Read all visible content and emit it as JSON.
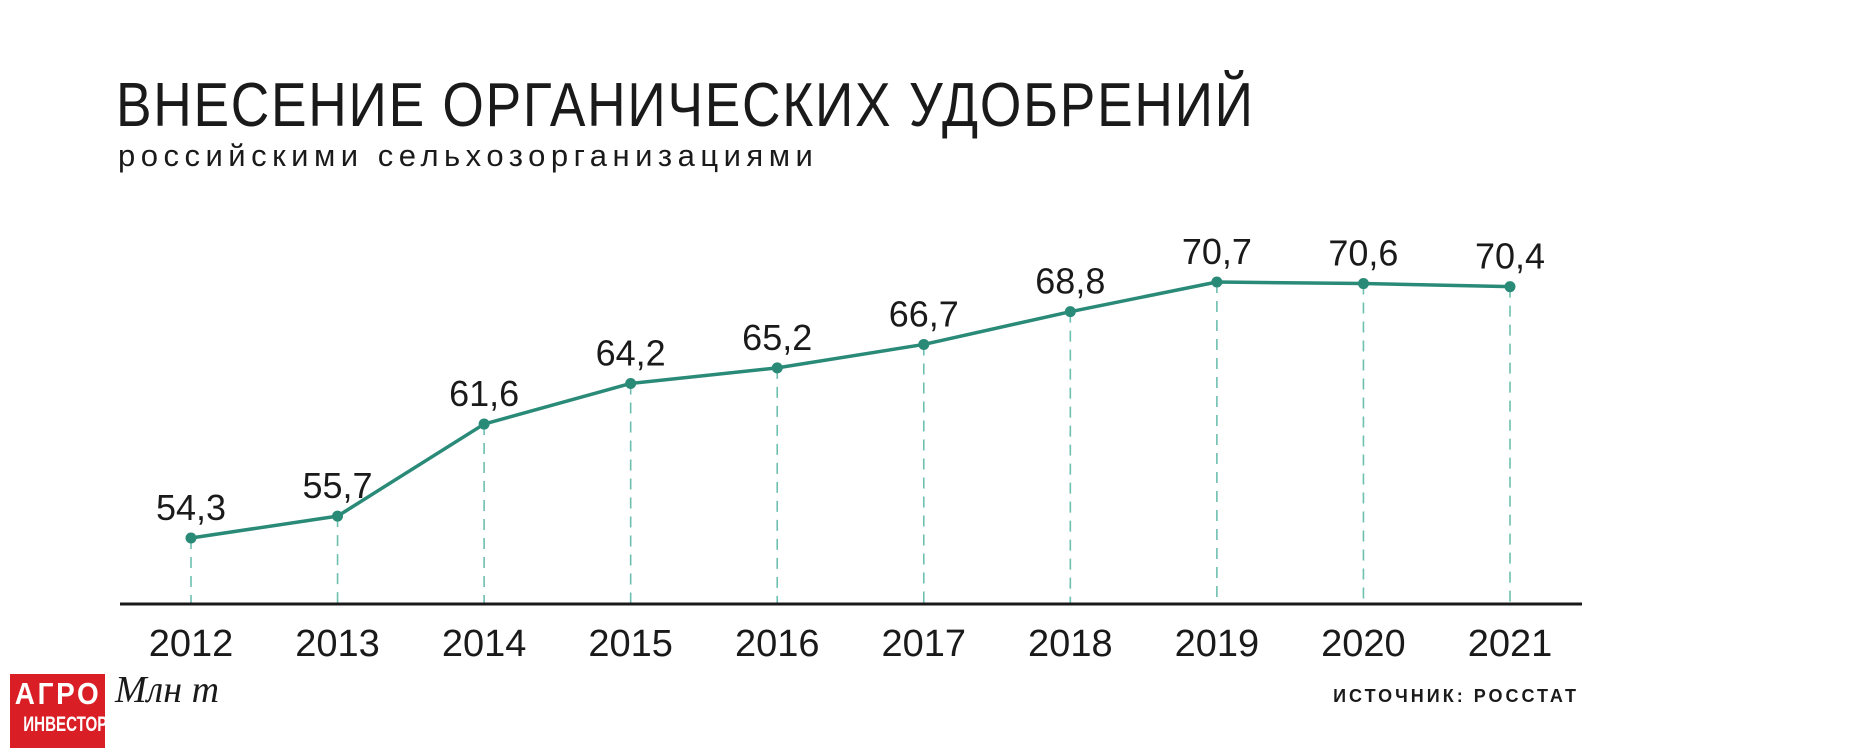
{
  "chart_data": {
    "type": "line",
    "title": "ВНЕСЕНИЕ ОРГАНИЧЕСКИХ УДОБРЕНИЙ",
    "subtitle": "российскими сельхозорганизациями",
    "unit_label": "Млн т",
    "source": "ИСТОЧНИК: РОССТАТ",
    "categories": [
      "2012",
      "2013",
      "2014",
      "2015",
      "2016",
      "2017",
      "2018",
      "2019",
      "2020",
      "2021"
    ],
    "values": [
      54.3,
      55.7,
      61.6,
      64.2,
      65.2,
      66.7,
      68.8,
      70.7,
      70.6,
      70.4
    ],
    "value_labels": [
      "54,3",
      "55,7",
      "61,6",
      "64,2",
      "65,2",
      "66,7",
      "68,8",
      "70,7",
      "70,6",
      "70,4"
    ],
    "grid": false,
    "drop_lines": true,
    "legend": "none",
    "colors": {
      "line": "#2a8a78",
      "dash": "#6dbfae",
      "axis": "#1a1a1a"
    }
  },
  "logo": {
    "line1": "АГРО",
    "line2": "ИНВЕСТОР"
  }
}
